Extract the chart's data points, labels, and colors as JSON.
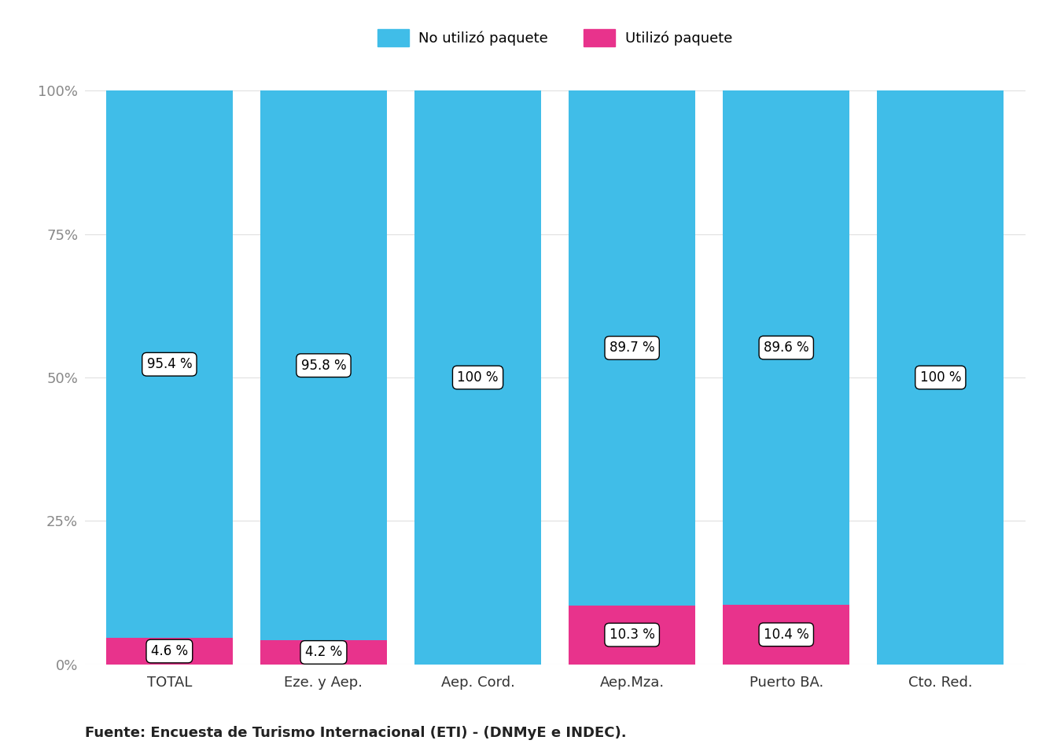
{
  "categories": [
    "TOTAL",
    "Eze. y Aep.",
    "Aep. Cord.",
    "Aep.Mza.",
    "Puerto BA.",
    "Cto. Red."
  ],
  "no_paquete": [
    95.4,
    95.8,
    100.0,
    89.7,
    89.6,
    100.0
  ],
  "paquete": [
    4.6,
    4.2,
    0.0,
    10.3,
    10.4,
    0.0
  ],
  "no_paquete_labels": [
    "95.4 %",
    "95.8 %",
    "100 %",
    "89.7 %",
    "89.6 %",
    "100 %"
  ],
  "paquete_labels": [
    "4.6 %",
    "4.2 %",
    "",
    "10.3 %",
    "10.4 %",
    ""
  ],
  "color_no_paquete": "#40bde8",
  "color_paquete": "#e8338c",
  "yticks": [
    0,
    25,
    50,
    75,
    100
  ],
  "ytick_labels": [
    "0%",
    "25%",
    "50%",
    "75%",
    "100%"
  ],
  "legend_labels": [
    "No utilizó paquete",
    "Utilizó paquete"
  ],
  "footer": "Fuente: Encuesta de Turismo Internacional (ETI) - (DNMyE e INDEC).",
  "background_color": "#ffffff",
  "label_fontsize": 12,
  "tick_fontsize": 13,
  "legend_fontsize": 13,
  "footer_fontsize": 13
}
